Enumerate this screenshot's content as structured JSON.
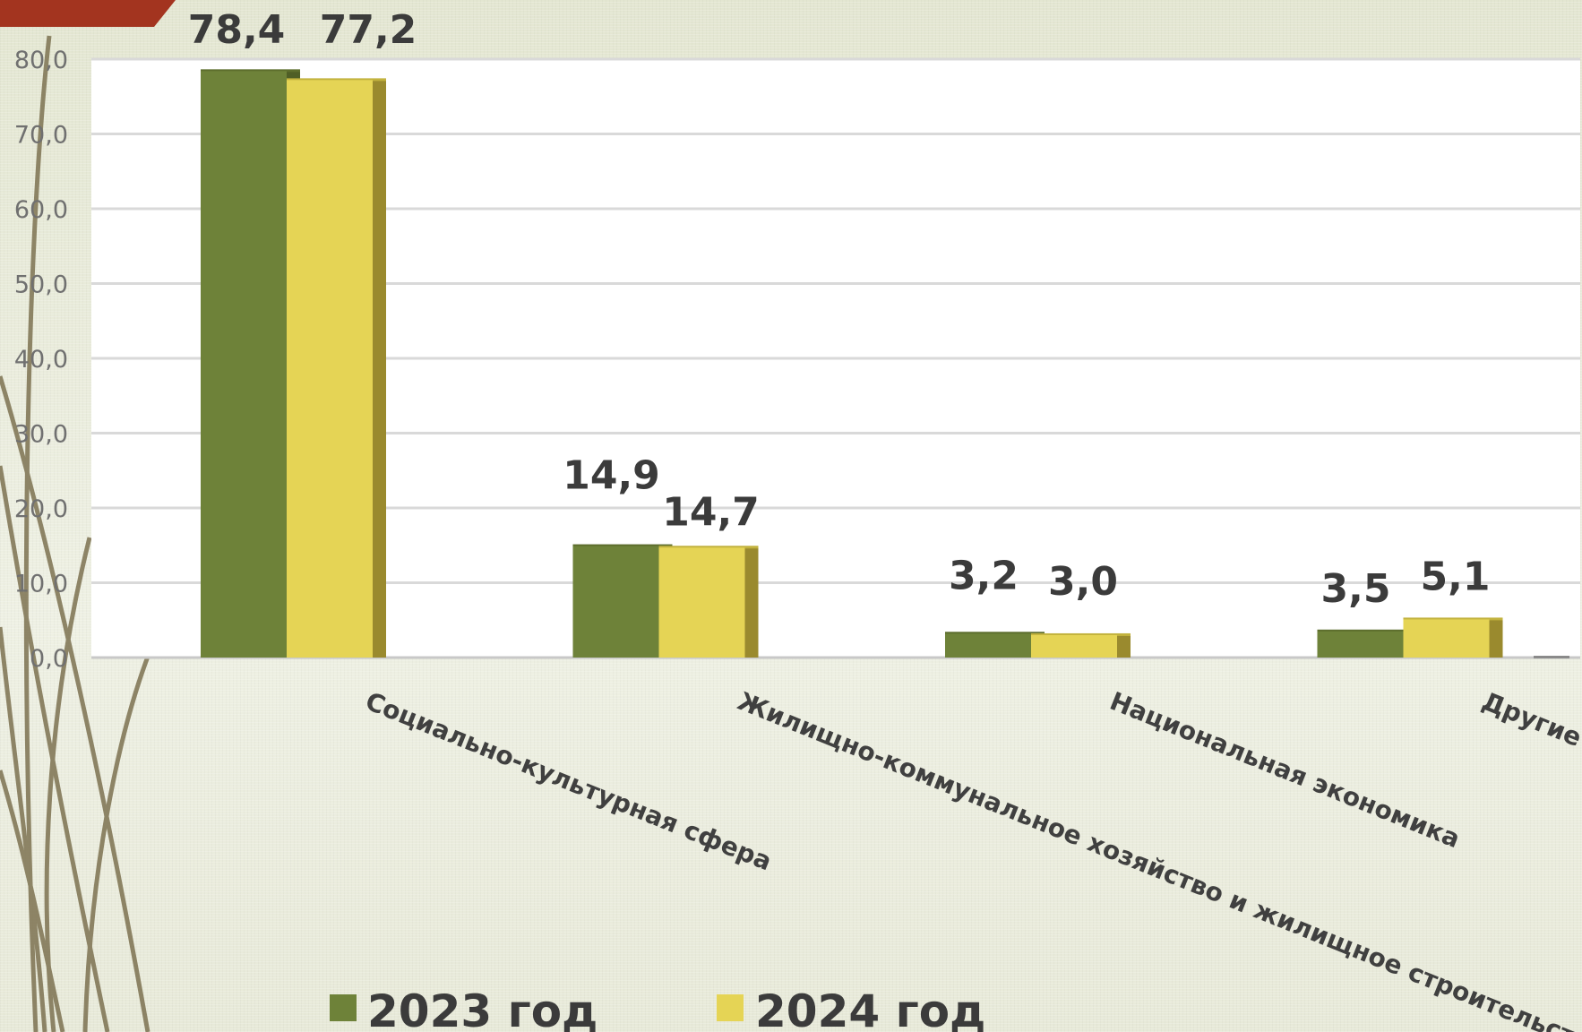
{
  "chart_data": {
    "type": "bar",
    "categories": [
      "Социально-культурная сфера",
      "Жилищно-коммунальное хозяйство и жилищное строительство",
      "Национальная экономика",
      "Другие отрасли"
    ],
    "series": [
      {
        "name": "2023 год",
        "values": [
          78.4,
          14.9,
          3.2,
          3.5
        ],
        "labels": [
          "78,4",
          "14,9",
          "3,2",
          "3,5"
        ]
      },
      {
        "name": "2024 год",
        "values": [
          77.2,
          14.7,
          3.0,
          5.1
        ],
        "labels": [
          "77,2",
          "14,7",
          "3,0",
          "5,1"
        ]
      }
    ],
    "yticks": [
      "0,0",
      "10,0",
      "20,0",
      "30,0",
      "40,0",
      "50,0",
      "60,0",
      "70,0",
      "80,0"
    ],
    "ylim": [
      0,
      80
    ],
    "grid": true,
    "legend": "bottom",
    "colors": {
      "2023": "#6e8239",
      "2024": "#e5d455"
    }
  }
}
